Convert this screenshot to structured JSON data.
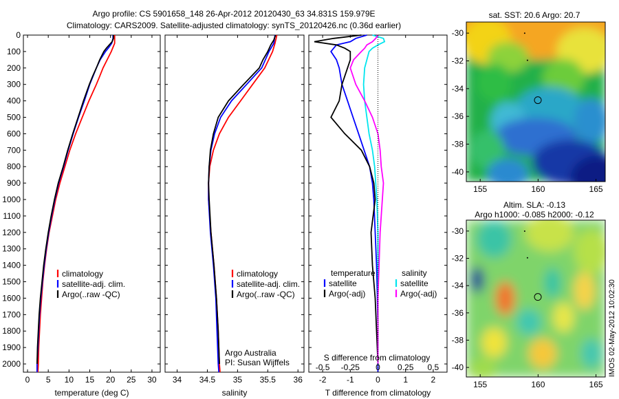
{
  "title_line1": "Argo profile: CS 5901658_148 26-Apr-2012 20120430_63 34.831S 159.979E",
  "title_line2": "Climatology: CARS2009. Satellite-adjusted climatology: synTS_20120426.nc (0.36d earlier)",
  "footer_credit": "IMOS 02-May-2012 10:02:30",
  "colors": {
    "climatology": "#ff0000",
    "satellite": "#0000ff",
    "argo": "#000000",
    "salinity_satellite": "#00e5ee",
    "salinity_argo": "#ff00ff"
  },
  "chart_data": [
    {
      "id": "temperature",
      "type": "line",
      "xlabel": "temperature (deg C)",
      "ylabel": "",
      "xlim": [
        -1,
        32
      ],
      "ylim": [
        2050,
        0
      ],
      "y_reversed": true,
      "xticks": [
        0,
        5,
        10,
        15,
        20,
        25,
        30
      ],
      "yticks": [
        0,
        100,
        200,
        300,
        400,
        500,
        600,
        700,
        800,
        900,
        1000,
        1100,
        1200,
        1300,
        1400,
        1500,
        1600,
        1700,
        1800,
        1900,
        2000
      ],
      "legend": [
        "climatology",
        "satellite-adj. clim.",
        "Argo(..raw -QC)"
      ],
      "series": [
        {
          "name": "climatology",
          "color": "#ff0000",
          "depth": [
            0,
            50,
            100,
            150,
            200,
            250,
            300,
            400,
            500,
            600,
            700,
            800,
            900,
            1000,
            1100,
            1200,
            1300,
            1400,
            1500,
            1600,
            1700,
            1800,
            1900,
            2000,
            2050
          ],
          "values": [
            21.0,
            21.0,
            20.2,
            19.2,
            18.2,
            17.4,
            16.6,
            14.8,
            13.2,
            11.6,
            10.2,
            9.0,
            7.8,
            6.8,
            6.0,
            5.2,
            4.6,
            4.1,
            3.7,
            3.4,
            3.1,
            2.9,
            2.7,
            2.6,
            2.5
          ]
        },
        {
          "name": "satellite-adj. clim.",
          "color": "#0000ff",
          "depth": [
            0,
            20,
            50,
            75,
            100,
            150,
            200,
            250,
            300,
            400,
            500,
            600,
            700,
            800,
            900,
            1000,
            1100,
            1200,
            1300,
            1400,
            1500,
            1600,
            1700,
            1800,
            1900,
            2000,
            2050
          ],
          "values": [
            20.6,
            20.6,
            20.3,
            19.6,
            18.8,
            17.5,
            16.6,
            15.8,
            15.0,
            13.7,
            12.3,
            11.0,
            9.8,
            8.7,
            7.5,
            6.6,
            5.8,
            5.1,
            4.5,
            4.0,
            3.6,
            3.2,
            2.9,
            2.7,
            2.5,
            2.3,
            2.3
          ]
        },
        {
          "name": "Argo(..raw -QC)",
          "color": "#000000",
          "depth": [
            0,
            20,
            40,
            60,
            80,
            100,
            150,
            200,
            250,
            300,
            400,
            500,
            600,
            700,
            800,
            900,
            1000,
            1100,
            1200,
            1300,
            1400,
            1500,
            1600,
            1700,
            1800,
            1900,
            2000
          ],
          "values": [
            20.7,
            20.7,
            20.4,
            19.7,
            19.0,
            18.4,
            17.4,
            16.6,
            15.7,
            14.9,
            13.5,
            12.2,
            10.9,
            9.7,
            8.6,
            7.4,
            6.5,
            5.7,
            5.0,
            4.4,
            3.9,
            3.5,
            3.1,
            2.8,
            2.6,
            2.4,
            2.3
          ]
        }
      ]
    },
    {
      "id": "salinity",
      "type": "line",
      "xlabel": "salinity",
      "xlim": [
        33.8,
        36.1
      ],
      "ylim": [
        2050,
        0
      ],
      "xticks": [
        34,
        34.5,
        35,
        35.5,
        36
      ],
      "legend": [
        "climatology",
        "satellite-adj. clim.",
        "Argo(..raw -QC)"
      ],
      "annotation": [
        "Argo Australia",
        "PI: Susan Wijffels"
      ],
      "series": [
        {
          "name": "climatology",
          "color": "#ff0000",
          "depth": [
            0,
            50,
            100,
            200,
            300,
            400,
            500,
            600,
            700,
            800,
            900,
            1000,
            1200,
            1400,
            1600,
            1800,
            2000,
            2050
          ],
          "values": [
            35.65,
            35.62,
            35.58,
            35.45,
            35.25,
            35.05,
            34.85,
            34.7,
            34.6,
            34.54,
            34.52,
            34.52,
            34.56,
            34.61,
            34.65,
            34.68,
            34.7,
            34.71
          ]
        },
        {
          "name": "satellite-adj. clim.",
          "color": "#0000ff",
          "depth": [
            0,
            50,
            100,
            200,
            300,
            400,
            500,
            600,
            700,
            800,
            900,
            1000,
            1200,
            1400,
            1600,
            1800,
            2000,
            2050
          ],
          "values": [
            35.62,
            35.6,
            35.52,
            35.4,
            35.15,
            34.9,
            34.72,
            34.62,
            34.56,
            34.53,
            34.52,
            34.52,
            34.55,
            34.6,
            34.64,
            34.66,
            34.68,
            34.69
          ]
        },
        {
          "name": "Argo(..raw -QC)",
          "color": "#000000",
          "depth": [
            0,
            30,
            60,
            100,
            150,
            200,
            300,
            400,
            500,
            600,
            700,
            800,
            900,
            1000,
            1200,
            1400,
            1600,
            1800,
            2000
          ],
          "values": [
            35.63,
            35.6,
            35.55,
            35.5,
            35.42,
            35.36,
            35.1,
            34.85,
            34.68,
            34.6,
            34.55,
            34.53,
            34.52,
            34.53,
            34.56,
            34.61,
            34.65,
            34.68,
            34.7
          ]
        }
      ]
    },
    {
      "id": "difference",
      "type": "line",
      "xlabel": "T difference from climatology",
      "xlabel_top": "S difference from climatology",
      "xlim": [
        -2.5,
        2.5
      ],
      "ylim": [
        2050,
        0
      ],
      "xticks_T": [
        -2,
        -1,
        0,
        1,
        2
      ],
      "xticks_S": [
        -0.5,
        -0.25,
        0,
        0.25,
        0.5
      ],
      "xtick_labels_S": [
        "-0.5",
        "-0.25",
        "0",
        "0.25",
        "0.5"
      ],
      "legend_titles": [
        "temperature",
        "salinity"
      ],
      "legend": [
        "satellite",
        "Argo(-adj)",
        "satellite",
        "Argo(-adj)"
      ],
      "series": [
        {
          "name": "satellite",
          "group": "temperature",
          "color": "#0000ff",
          "depth": [
            0,
            20,
            40,
            60,
            80,
            100,
            150,
            200,
            300,
            400,
            500,
            600,
            700,
            800,
            900,
            1000,
            1200,
            1400,
            1600,
            1800,
            2000,
            2050
          ],
          "values": [
            -0.4,
            -0.8,
            -1.0,
            -1.5,
            -1.6,
            -1.7,
            -1.5,
            -1.4,
            -1.3,
            -1.1,
            -0.9,
            -0.7,
            -0.5,
            -0.3,
            -0.2,
            -0.15,
            -0.1,
            -0.05,
            -0.02,
            0.0,
            0.0,
            0.0
          ]
        },
        {
          "name": "Argo(-adj)",
          "group": "temperature",
          "color": "#000000",
          "depth": [
            0,
            20,
            40,
            60,
            80,
            100,
            150,
            200,
            300,
            400,
            500,
            600,
            700,
            800,
            900,
            1000,
            1200,
            1400,
            1600,
            1800,
            2000
          ],
          "values": [
            -0.6,
            -1.6,
            -2.3,
            -1.5,
            -1.2,
            -1.0,
            -1.0,
            -1.1,
            -1.3,
            -1.4,
            -1.7,
            -1.2,
            -0.6,
            -0.3,
            -0.15,
            -0.1,
            -0.25,
            -0.2,
            -0.1,
            -0.05,
            0.0
          ]
        },
        {
          "name": "satellite",
          "group": "salinity",
          "color": "#00e5ee",
          "depth": [
            0,
            20,
            40,
            60,
            80,
            100,
            150,
            200,
            300,
            400,
            500,
            600,
            700,
            800,
            900,
            1000,
            1200,
            1400,
            1600,
            1800,
            2000
          ],
          "values": [
            -0.05,
            0.05,
            0.06,
            0.0,
            -0.05,
            -0.08,
            -0.1,
            -0.12,
            -0.13,
            -0.12,
            -0.1,
            -0.08,
            -0.05,
            -0.03,
            -0.02,
            -0.01,
            0.0,
            0.0,
            0.0,
            0.0,
            0.0
          ]
        },
        {
          "name": "Argo(-adj)",
          "group": "salinity",
          "color": "#ff00ff",
          "depth": [
            0,
            20,
            40,
            60,
            80,
            100,
            150,
            200,
            300,
            400,
            500,
            600,
            700,
            800,
            900,
            1000,
            1200,
            1400,
            1600,
            1800,
            2000
          ],
          "values": [
            0.0,
            -0.02,
            -0.05,
            -0.1,
            -0.12,
            -0.15,
            -0.22,
            -0.25,
            -0.2,
            -0.12,
            -0.05,
            0.0,
            0.02,
            0.03,
            0.05,
            0.04,
            0.02,
            0.01,
            0.0,
            0.0,
            0.0
          ]
        }
      ]
    },
    {
      "id": "sst_map",
      "type": "heatmap",
      "title": "sat. SST: 20.6  Argo: 20.7",
      "xticks": [
        155,
        160,
        165
      ],
      "yticks": [
        -30,
        -32,
        -34,
        -36,
        -38,
        -40
      ],
      "xlim": [
        153.8,
        165.8
      ],
      "ylim": [
        -40.7,
        -29.2
      ],
      "marker": {
        "lon": 159.979,
        "lat": -34.831
      }
    },
    {
      "id": "sla_map",
      "type": "heatmap",
      "title": "Altim. SLA: -0.13",
      "subtitle": "Argo h1000: -0.085  h2000: -0.12",
      "xticks": [
        155,
        160,
        165
      ],
      "yticks": [
        -30,
        -32,
        -34,
        -36,
        -38,
        -40
      ],
      "xlim": [
        153.8,
        165.8
      ],
      "ylim": [
        -40.7,
        -29.2
      ],
      "marker": {
        "lon": 159.979,
        "lat": -34.831
      }
    }
  ]
}
